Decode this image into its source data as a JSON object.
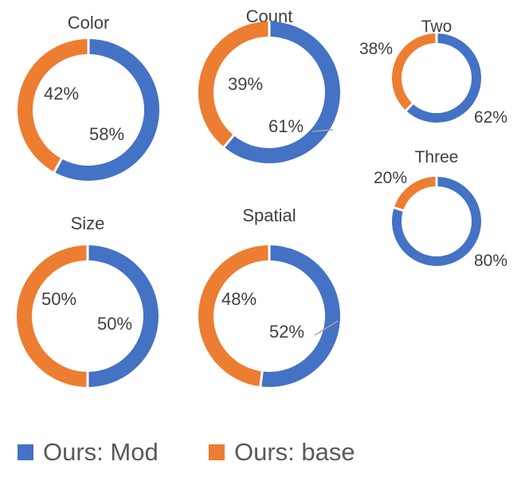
{
  "chart_data": [
    {
      "type": "pie",
      "title": "Color",
      "categories": [
        "Ours: Mod",
        "Ours: base"
      ],
      "values": [
        58,
        42
      ],
      "data_labels": [
        "58%",
        "42%"
      ]
    },
    {
      "type": "pie",
      "title": "Count",
      "categories": [
        "Ours: Mod",
        "Ours: base"
      ],
      "values": [
        61,
        39
      ],
      "data_labels": [
        "61%",
        "39%"
      ]
    },
    {
      "type": "pie",
      "title": "Two",
      "categories": [
        "Ours: Mod",
        "Ours: base"
      ],
      "values": [
        62,
        38
      ],
      "data_labels": [
        "62%",
        "38%"
      ]
    },
    {
      "type": "pie",
      "title": "Three",
      "categories": [
        "Ours: Mod",
        "Ours: base"
      ],
      "values": [
        80,
        20
      ],
      "data_labels": [
        "80%",
        "20%"
      ]
    },
    {
      "type": "pie",
      "title": "Size",
      "categories": [
        "Ours: Mod",
        "Ours: base"
      ],
      "values": [
        50,
        50
      ],
      "data_labels": [
        "50%",
        "50%"
      ]
    },
    {
      "type": "pie",
      "title": "Spatial",
      "categories": [
        "Ours: Mod",
        "Ours: base"
      ],
      "values": [
        52,
        48
      ],
      "data_labels": [
        "52%",
        "48%"
      ]
    }
  ],
  "legend": {
    "items": [
      {
        "label": "Ours: Mod",
        "color": "#4472C4"
      },
      {
        "label": "Ours: base",
        "color": "#ED7D31"
      }
    ]
  },
  "colors": {
    "mod": "#4472C4",
    "base": "#ED7D31"
  }
}
